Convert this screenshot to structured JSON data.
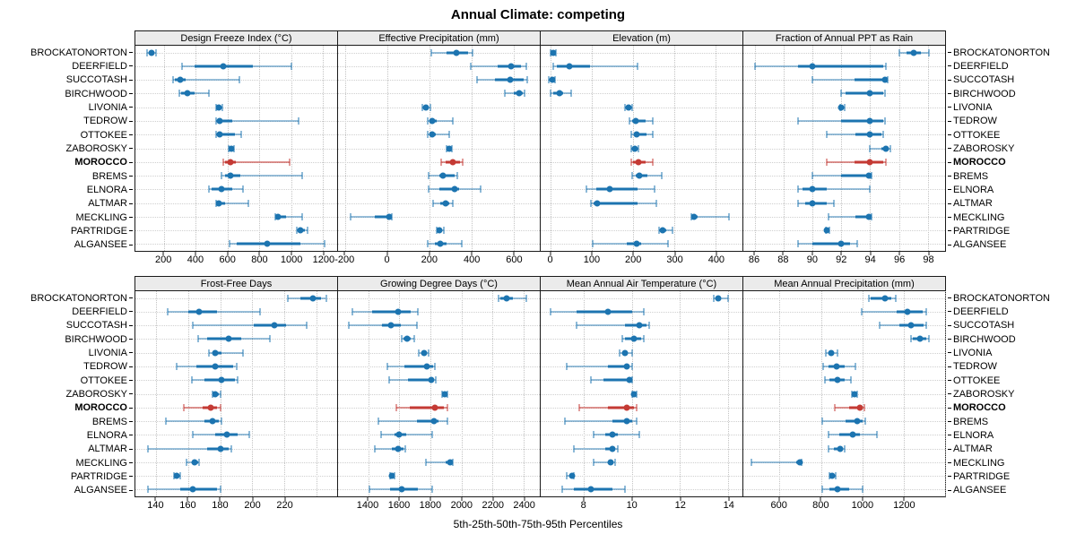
{
  "title": "Annual Climate: competing",
  "footer": "5th-25th-50th-75th-95th Percentiles",
  "highlight_site": "MOROCCO",
  "sites": [
    "BROCKATONORTON",
    "DEERFIELD",
    "SUCCOTASH",
    "BIRCHWOOD",
    "LIVONIA",
    "TEDROW",
    "OTTOKEE",
    "ZABOROSKY",
    "MOROCCO",
    "BREMS",
    "ELNORA",
    "ALTMAR",
    "MECKLING",
    "PARTRIDGE",
    "ALGANSEE"
  ],
  "percentile_labels": [
    "5th",
    "25th",
    "50th",
    "75th",
    "95th"
  ],
  "colors": {
    "series": "#1c74b0",
    "series_light": "rgba(28,116,176,0.45)",
    "highlight": "#c43a34",
    "highlight_light": "rgba(196,58,52,0.55)",
    "strip_bg": "#ebebeb",
    "grid": "#c3c3c3"
  },
  "chart_data": [
    {
      "type": "dotplot-intervals",
      "row": 0,
      "title": "Design Freeze Index (°C)",
      "xlim": [
        20,
        1290
      ],
      "ticks": [
        200,
        400,
        600,
        800,
        1000,
        1200
      ],
      "percentiles": [
        5,
        25,
        50,
        75,
        95
      ],
      "values": [
        [
          95,
          110,
          122,
          138,
          152
        ],
        [
          315,
          390,
          575,
          760,
          1000
        ],
        [
          255,
          270,
          300,
          335,
          675
        ],
        [
          295,
          310,
          350,
          395,
          485
        ],
        [
          526,
          536,
          545,
          556,
          568
        ],
        [
          528,
          540,
          550,
          630,
          1050
        ],
        [
          528,
          538,
          550,
          645,
          685
        ],
        [
          606,
          615,
          624,
          634,
          643
        ],
        [
          572,
          585,
          617,
          650,
          989
        ],
        [
          563,
          585,
          620,
          680,
          1072
        ],
        [
          485,
          500,
          563,
          630,
          698
        ],
        [
          528,
          534,
          544,
          582,
          732
        ],
        [
          902,
          908,
          920,
          967,
          1068
        ],
        [
          1037,
          1043,
          1061,
          1087,
          1102
        ],
        [
          615,
          656,
          850,
          1060,
          1211
        ]
      ]
    },
    {
      "type": "dotplot-intervals",
      "row": 0,
      "title": "Effective Precipitation (mm)",
      "xlim": [
        -235,
        725
      ],
      "ticks": [
        -200,
        0,
        200,
        400,
        600
      ],
      "percentiles": [
        5,
        25,
        50,
        75,
        95
      ],
      "values": [
        [
          210,
          280,
          330,
          385,
          405
        ],
        [
          395,
          525,
          590,
          635,
          660
        ],
        [
          425,
          510,
          585,
          650,
          665
        ],
        [
          558,
          600,
          625,
          642,
          652
        ],
        [
          168,
          177,
          185,
          196,
          205
        ],
        [
          190,
          205,
          215,
          235,
          310
        ],
        [
          192,
          204,
          212,
          230,
          295
        ],
        [
          283,
          290,
          295,
          300,
          307
        ],
        [
          254,
          275,
          310,
          345,
          360
        ],
        [
          195,
          245,
          265,
          318,
          332
        ],
        [
          195,
          248,
          318,
          342,
          445
        ],
        [
          218,
          252,
          275,
          292,
          311
        ],
        [
          -175,
          -60,
          8,
          14,
          20
        ],
        [
          235,
          242,
          249,
          260,
          268
        ],
        [
          193,
          225,
          250,
          282,
          352
        ]
      ]
    },
    {
      "type": "dotplot-intervals",
      "row": 0,
      "title": "Elevation (m)",
      "xlim": [
        -25,
        465
      ],
      "ticks": [
        0,
        100,
        200,
        300,
        400
      ],
      "percentiles": [
        5,
        25,
        50,
        75,
        95
      ],
      "values": [
        [
          0,
          2,
          5,
          8,
          12
        ],
        [
          5,
          15,
          45,
          95,
          210
        ],
        [
          -5,
          0,
          3,
          7,
          10
        ],
        [
          0,
          6,
          20,
          30,
          48
        ],
        [
          179,
          184,
          188,
          193,
          198
        ],
        [
          190,
          198,
          206,
          230,
          248
        ],
        [
          194,
          201,
          208,
          231,
          248
        ],
        [
          196,
          200,
          203,
          207,
          212
        ],
        [
          194,
          200,
          212,
          230,
          247
        ],
        [
          197,
          205,
          214,
          235,
          269
        ],
        [
          85,
          110,
          143,
          211,
          251
        ],
        [
          98,
          103,
          113,
          211,
          256
        ],
        [
          340,
          343,
          347,
          357,
          433
        ],
        [
          262,
          267,
          272,
          280,
          295
        ],
        [
          101,
          183,
          207,
          220,
          285
        ]
      ]
    },
    {
      "type": "dotplot-intervals",
      "row": 0,
      "title": "Fraction of Annual PPT as Rain",
      "xlim": [
        85.2,
        99.2
      ],
      "ticks": [
        86,
        88,
        90,
        92,
        94,
        96,
        98
      ],
      "percentiles": [
        5,
        25,
        50,
        75,
        95
      ],
      "values": [
        [
          96.0,
          96.5,
          97.0,
          97.5,
          98.1
        ],
        [
          86.0,
          89.0,
          90.0,
          94.9,
          95.1
        ],
        [
          90.0,
          92.9,
          95.0,
          95.1,
          95.2
        ],
        [
          92.0,
          92.3,
          94.0,
          94.9,
          95.0
        ],
        [
          91.9,
          92.0,
          92.0,
          92.1,
          92.2
        ],
        [
          89.0,
          92.0,
          94.0,
          94.9,
          95.0
        ],
        [
          91.0,
          93.0,
          94.0,
          94.8,
          94.9
        ],
        [
          94.0,
          94.8,
          95.1,
          95.2,
          95.4
        ],
        [
          91.0,
          92.9,
          94.0,
          94.9,
          95.1
        ],
        [
          90.0,
          92.0,
          93.9,
          94.0,
          94.1
        ],
        [
          89.0,
          89.3,
          90.0,
          91.0,
          94.0
        ],
        [
          89.0,
          89.5,
          90.0,
          91.0,
          91.5
        ],
        [
          91.1,
          93.0,
          93.9,
          94.0,
          94.1
        ],
        [
          90.9,
          91.0,
          91.0,
          91.1,
          91.2
        ],
        [
          89.0,
          90.0,
          92.0,
          92.6,
          93.1
        ]
      ]
    },
    {
      "type": "dotplot-intervals",
      "row": 1,
      "title": "Frost-Free Days",
      "xlim": [
        127,
        253
      ],
      "ticks": [
        140,
        160,
        180,
        200,
        220
      ],
      "grid_extra": [
        240
      ],
      "percentiles": [
        5,
        25,
        50,
        75,
        95
      ],
      "values": [
        [
          222,
          230,
          238,
          243,
          246
        ],
        [
          147,
          160,
          167,
          178,
          205
        ],
        [
          163,
          201,
          214,
          221,
          234
        ],
        [
          166,
          172,
          185,
          193,
          211
        ],
        [
          173,
          175,
          177,
          181,
          194
        ],
        [
          153,
          165,
          177,
          188,
          190
        ],
        [
          162,
          170,
          181,
          189,
          191
        ],
        [
          175,
          176,
          177,
          179,
          180
        ],
        [
          157,
          169,
          174,
          178,
          180
        ],
        [
          146,
          170,
          175,
          179,
          181
        ],
        [
          163,
          177,
          184,
          191,
          198
        ],
        [
          135,
          172,
          180,
          185,
          187
        ],
        [
          159,
          162,
          164,
          166,
          167
        ],
        [
          151,
          152,
          153,
          154,
          155
        ],
        [
          135,
          155,
          163,
          178,
          180
        ]
      ]
    },
    {
      "type": "dotplot-intervals",
      "row": 1,
      "title": "Growing Degree Days (°C)",
      "xlim": [
        1205,
        2505
      ],
      "ticks": [
        1400,
        1600,
        1800,
        2000,
        2200,
        2400
      ],
      "percentiles": [
        5,
        25,
        50,
        75,
        95
      ],
      "values": [
        [
          2240,
          2252,
          2290,
          2330,
          2420
        ],
        [
          1295,
          1425,
          1590,
          1675,
          1720
        ],
        [
          1275,
          1490,
          1545,
          1610,
          1713
        ],
        [
          1615,
          1627,
          1650,
          1672,
          1696
        ],
        [
          1724,
          1740,
          1760,
          1776,
          1788
        ],
        [
          1525,
          1630,
          1775,
          1815,
          1830
        ],
        [
          1535,
          1655,
          1805,
          1825,
          1835
        ],
        [
          1878,
          1886,
          1893,
          1901,
          1910
        ],
        [
          1580,
          1665,
          1830,
          1885,
          1910
        ],
        [
          1465,
          1715,
          1825,
          1850,
          1910
        ],
        [
          1485,
          1570,
          1600,
          1645,
          1810
        ],
        [
          1440,
          1550,
          1590,
          1627,
          1641
        ],
        [
          1772,
          1900,
          1925,
          1938,
          1946
        ],
        [
          1538,
          1545,
          1552,
          1560,
          1568
        ],
        [
          1410,
          1540,
          1615,
          1720,
          1810
        ]
      ]
    },
    {
      "type": "dotplot-intervals",
      "row": 1,
      "title": "Mean Annual Air Temperature (°C)",
      "xlim": [
        6.2,
        14.6
      ],
      "ticks": [
        8,
        10,
        12,
        14
      ],
      "percentiles": [
        5,
        25,
        50,
        75,
        95
      ],
      "values": [
        [
          13.4,
          13.5,
          13.6,
          13.7,
          14.0
        ],
        [
          6.6,
          7.7,
          9.0,
          10.0,
          10.5
        ],
        [
          7.7,
          9.7,
          10.3,
          10.6,
          10.7
        ],
        [
          9.6,
          9.7,
          10.1,
          10.4,
          10.5
        ],
        [
          9.5,
          9.6,
          9.7,
          9.8,
          10.0
        ],
        [
          7.3,
          9.0,
          9.8,
          9.9,
          10.0
        ],
        [
          8.3,
          8.8,
          9.9,
          9.95,
          10.0
        ],
        [
          10.0,
          10.05,
          10.1,
          10.15,
          10.2
        ],
        [
          7.8,
          9.0,
          9.8,
          10.1,
          10.2
        ],
        [
          7.2,
          9.2,
          9.8,
          10.0,
          10.2
        ],
        [
          8.4,
          8.9,
          9.2,
          9.4,
          10.3
        ],
        [
          7.6,
          8.9,
          9.2,
          9.3,
          9.4
        ],
        [
          8.4,
          9.0,
          9.1,
          9.2,
          9.3
        ],
        [
          7.3,
          7.4,
          7.5,
          7.55,
          7.6
        ],
        [
          7.1,
          7.6,
          8.3,
          9.2,
          9.7
        ]
      ]
    },
    {
      "type": "dotplot-intervals",
      "row": 1,
      "title": "Mean Annual Precipitation (mm)",
      "xlim": [
        425,
        1400
      ],
      "ticks": [
        600,
        800,
        1000,
        1200
      ],
      "grid_extra": [
        1400
      ],
      "percentiles": [
        5,
        25,
        50,
        75,
        95
      ],
      "values": [
        [
          1030,
          1040,
          1110,
          1140,
          1160
        ],
        [
          995,
          1165,
          1220,
          1290,
          1310
        ],
        [
          1085,
          1180,
          1235,
          1295,
          1310
        ],
        [
          1235,
          1242,
          1280,
          1308,
          1322
        ],
        [
          825,
          835,
          848,
          862,
          878
        ],
        [
          810,
          835,
          875,
          913,
          965
        ],
        [
          820,
          840,
          880,
          913,
          945
        ],
        [
          950,
          956,
          962,
          968,
          975
        ],
        [
          865,
          935,
          990,
          1002,
          1012
        ],
        [
          805,
          920,
          975,
          1000,
          1015
        ],
        [
          835,
          890,
          953,
          990,
          1070
        ],
        [
          838,
          862,
          893,
          905,
          913
        ],
        [
          465,
          680,
          697,
          703,
          708
        ],
        [
          842,
          850,
          856,
          865,
          873
        ],
        [
          805,
          840,
          880,
          935,
          1000
        ]
      ]
    }
  ]
}
